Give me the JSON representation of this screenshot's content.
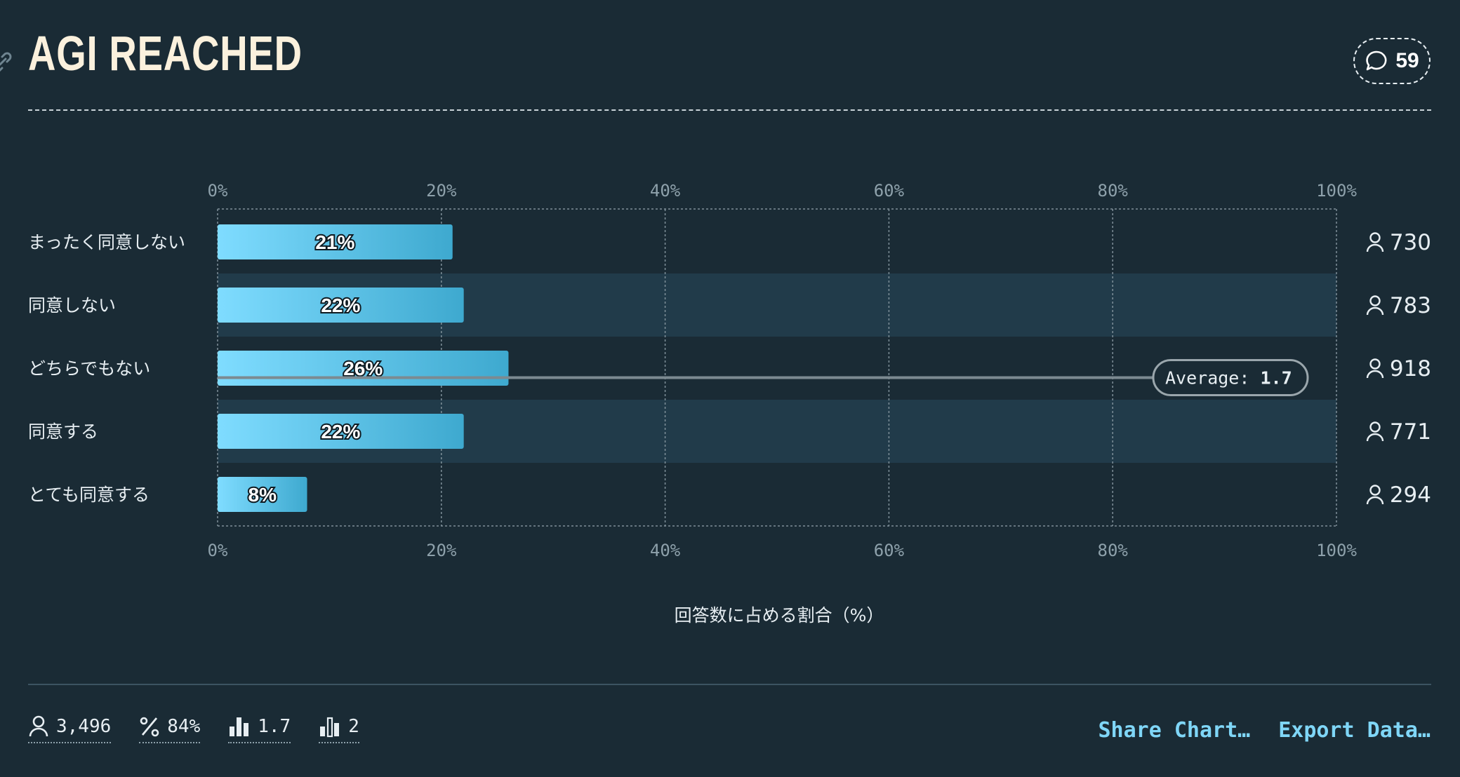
{
  "title": "AGI REACHED",
  "comments_count": "59",
  "chart_data": {
    "type": "bar",
    "orientation": "horizontal",
    "categories": [
      "まったく同意しない",
      "同意しない",
      "どちらでもない",
      "同意する",
      "とても同意する"
    ],
    "values": [
      21,
      22,
      26,
      22,
      8
    ],
    "value_labels": [
      "21%",
      "22%",
      "26%",
      "22%",
      "8%"
    ],
    "counts": [
      "730",
      "783",
      "918",
      "771",
      "294"
    ],
    "xlim": [
      0,
      100
    ],
    "x_ticks": [
      "0%",
      "20%",
      "40%",
      "60%",
      "80%",
      "100%"
    ],
    "xlabel": "回答数に占める割合（%）",
    "average_label": "Average:",
    "average_value": "1.7",
    "average_position": 2.15,
    "grid": true,
    "colors": {
      "bar_start": "#7fdcff",
      "bar_end": "#3ea9cf",
      "band": "#213b4a",
      "background": "#1a2b35",
      "grid": "#7f9099"
    }
  },
  "footer": {
    "stats": [
      {
        "icon": "person-icon",
        "value": "3,496"
      },
      {
        "icon": "percent-icon",
        "value": "84%"
      },
      {
        "icon": "bar-chart-icon",
        "value": "1.7"
      },
      {
        "icon": "median-chart-icon",
        "value": "2"
      }
    ],
    "share_label": "Share Chart…",
    "export_label": "Export Data…"
  }
}
